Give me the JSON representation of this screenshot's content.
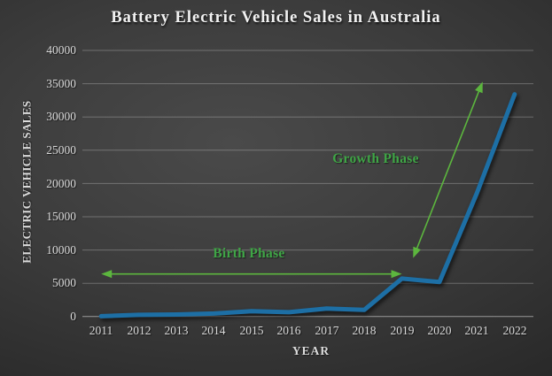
{
  "title": "Battery Electric Vehicle Sales in Australia",
  "chart_data": {
    "type": "line",
    "title": "Battery Electric Vehicle Sales in Australia",
    "xlabel": "YEAR",
    "ylabel": "ELECTRIC VEHICLE SALES",
    "categories": [
      "2011",
      "2012",
      "2013",
      "2014",
      "2015",
      "2016",
      "2017",
      "2018",
      "2019",
      "2020",
      "2021",
      "2022"
    ],
    "values": [
      50,
      250,
      300,
      450,
      800,
      650,
      1200,
      1000,
      5700,
      5200,
      18600,
      33400
    ],
    "ylim": [
      0,
      40000
    ],
    "ytick_step": 5000,
    "yticks": [
      "40000",
      "35000",
      "30000",
      "25000",
      "20000",
      "15000",
      "10000",
      "5000",
      "0"
    ],
    "grid": true,
    "legend": "none",
    "line_color": "#1d6fa5",
    "annotation_text_color": "#3fa546",
    "annotation_arrow_color": "#5cb63e",
    "annotations": [
      {
        "label": "Birth Phase",
        "type": "double-arrow-horizontal",
        "from": {
          "year": 2011,
          "value": 6400
        },
        "to": {
          "year": 2019,
          "value": 6400
        }
      },
      {
        "label": "Growth Phase",
        "type": "double-arrow-diagonal",
        "from": {
          "year": 2019.3,
          "value": 8800
        },
        "to": {
          "year": 2021.15,
          "value": 35300
        }
      }
    ]
  }
}
